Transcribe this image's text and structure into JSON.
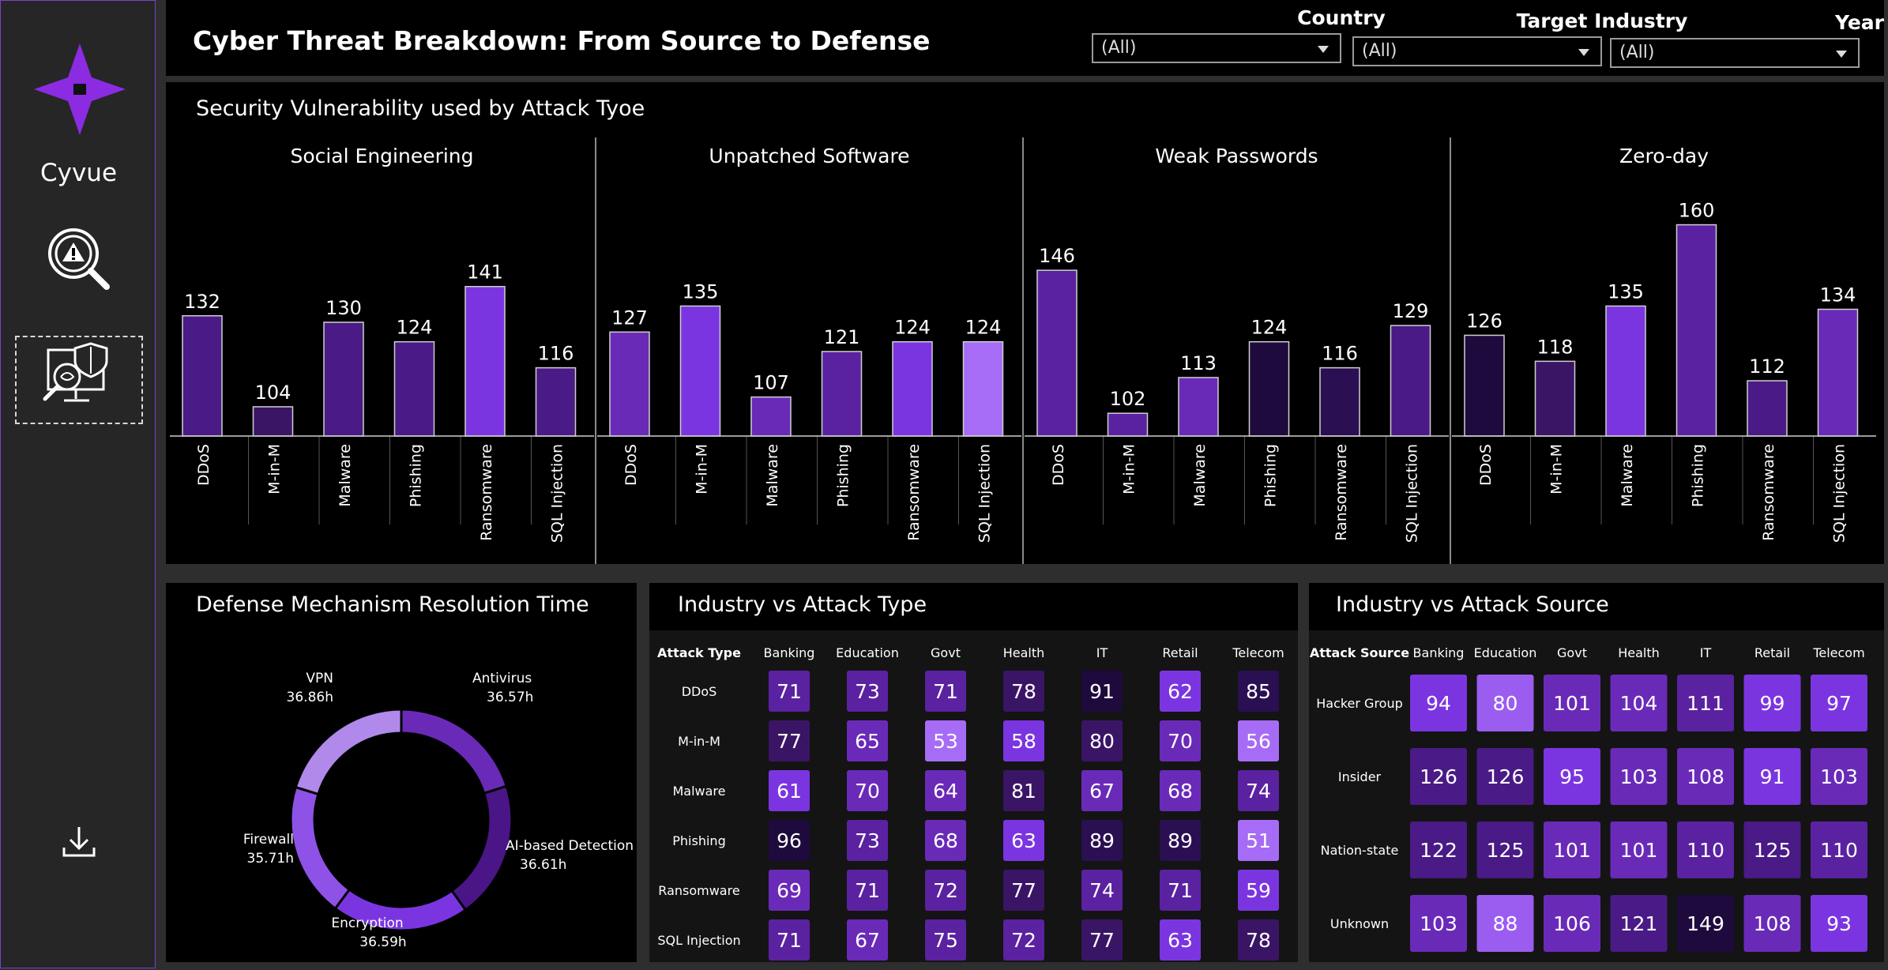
{
  "sidebar": {
    "brand": "Cyvue",
    "items": [
      {
        "icon": "threat-search-icon"
      },
      {
        "icon": "security-analysis-icon",
        "selected": true
      },
      {
        "icon": "download-icon"
      }
    ],
    "accent": "#8b2be2"
  },
  "header": {
    "title": "Cyber Threat Breakdown: From Source to Defense",
    "filters": [
      {
        "label": "Country",
        "value": "(All)"
      },
      {
        "label": "Target Industry",
        "value": "(All)"
      },
      {
        "label": "Year",
        "value": "(All)"
      }
    ]
  },
  "panels": {
    "vulnerability_title": "Security Vulnerability used by Attack Tyoe",
    "defense_title": "Defense Mechanism Resolution Time",
    "industry_type_title": "Industry vs Attack Type",
    "industry_source_title": "Industry vs Attack Source"
  },
  "chart_data": [
    {
      "type": "bar",
      "title": "Security Vulnerability used by Attack Tyoe",
      "categories": [
        "DDoS",
        "M-in-M",
        "Malware",
        "Phishing",
        "Ransomware",
        "SQL Injection"
      ],
      "series": [
        {
          "name": "Social Engineering",
          "values": [
            132,
            104,
            130,
            124,
            141,
            116
          ]
        },
        {
          "name": "Unpatched Software",
          "values": [
            127,
            135,
            107,
            121,
            124,
            124
          ]
        },
        {
          "name": "Weak Passwords",
          "values": [
            146,
            102,
            113,
            124,
            116,
            129
          ]
        },
        {
          "name": "Zero-day",
          "values": [
            126,
            118,
            135,
            160,
            112,
            134
          ]
        }
      ],
      "ylim": [
        95,
        165
      ],
      "grid": false
    },
    {
      "type": "pie",
      "title": "Defense Mechanism Resolution Time",
      "slices": [
        {
          "label": "Antivirus",
          "display": "36.57h",
          "value": 36.57,
          "color": "#6a2ab8"
        },
        {
          "label": "AI-based Detection",
          "display": "36.61h",
          "value": 36.61,
          "color": "#4a1586"
        },
        {
          "label": "Encryption",
          "display": "36.59h",
          "value": 36.59,
          "color": "#7b35e0"
        },
        {
          "label": "Firewall",
          "display": "35.71h",
          "value": 35.71,
          "color": "#8e52e6"
        },
        {
          "label": "VPN",
          "display": "36.86h",
          "value": 36.86,
          "color": "#b089ea"
        }
      ]
    },
    {
      "type": "heatmap",
      "title": "Industry vs Attack Type",
      "row_header": "Attack Type",
      "columns": [
        "Banking",
        "Education",
        "Govt",
        "Health",
        "IT",
        "Retail",
        "Telecom"
      ],
      "rows": [
        "DDoS",
        "M-in-M",
        "Malware",
        "Phishing",
        "Ransomware",
        "SQL Injection"
      ],
      "values": [
        [
          71,
          73,
          71,
          78,
          91,
          62,
          85
        ],
        [
          77,
          65,
          53,
          58,
          80,
          70,
          56
        ],
        [
          61,
          70,
          64,
          81,
          67,
          68,
          74
        ],
        [
          96,
          73,
          68,
          63,
          89,
          89,
          51
        ],
        [
          69,
          71,
          72,
          77,
          74,
          71,
          59
        ],
        [
          71,
          67,
          75,
          72,
          77,
          63,
          78
        ]
      ],
      "range": [
        51,
        96
      ]
    },
    {
      "type": "heatmap",
      "title": "Industry vs Attack Source",
      "row_header": "Attack Source",
      "columns": [
        "Banking",
        "Education",
        "Govt",
        "Health",
        "IT",
        "Retail",
        "Telecom"
      ],
      "rows": [
        "Hacker Group",
        "Insider",
        "Nation-state",
        "Unknown"
      ],
      "values": [
        [
          94,
          80,
          101,
          104,
          111,
          99,
          97
        ],
        [
          126,
          126,
          95,
          103,
          108,
          91,
          103
        ],
        [
          122,
          125,
          101,
          101,
          110,
          125,
          110
        ],
        [
          103,
          88,
          106,
          121,
          149,
          108,
          93
        ]
      ],
      "range": [
        80,
        149
      ]
    }
  ]
}
